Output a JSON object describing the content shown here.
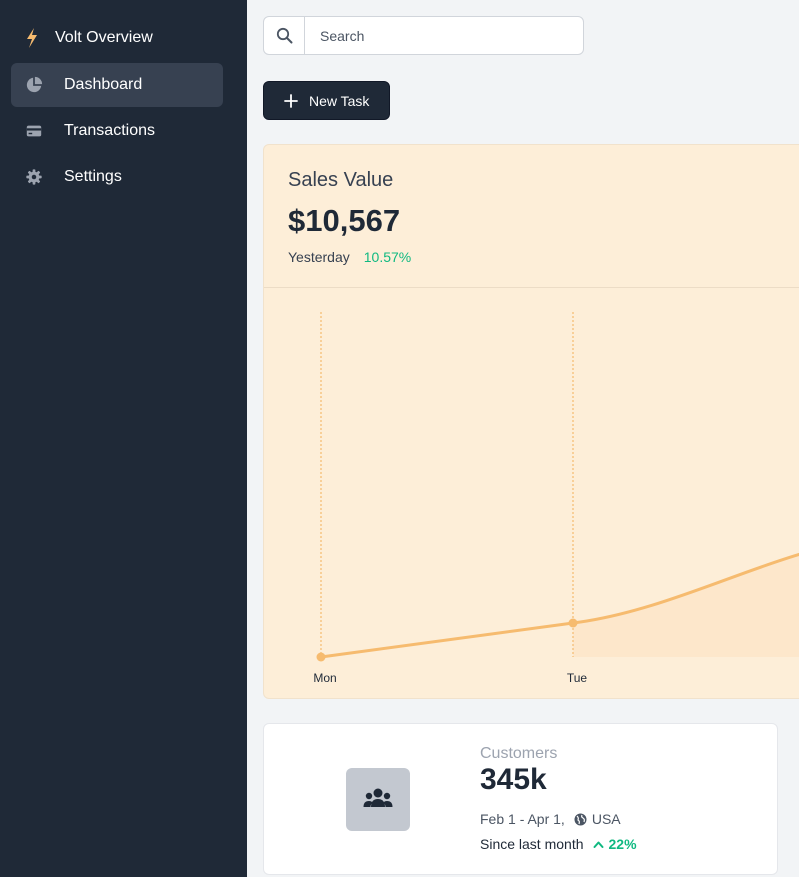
{
  "sidebar": {
    "brand": "Volt Overview",
    "items": [
      {
        "label": "Dashboard",
        "icon": "chart-pie-icon",
        "active": true
      },
      {
        "label": "Transactions",
        "icon": "credit-card-icon",
        "active": false
      },
      {
        "label": "Settings",
        "icon": "gear-icon",
        "active": false
      }
    ]
  },
  "search": {
    "placeholder": "Search",
    "value": ""
  },
  "toolbar": {
    "new_task_label": "New Task"
  },
  "sales": {
    "title": "Sales Value",
    "value": "$10,567",
    "period": "Yesterday",
    "change": "10.57%"
  },
  "chart_data": {
    "type": "area",
    "categories": [
      "Mon",
      "Tue"
    ],
    "x": [
      "Mon",
      "Tue"
    ],
    "values": [
      0,
      1
    ],
    "color": "#f6bb6f",
    "fill": "#fde7cb",
    "grid": "dashed vertical lines at data points"
  },
  "customers": {
    "label": "Customers",
    "value": "345k",
    "range": "Feb 1 - Apr 1,",
    "country": "USA",
    "since_label": "Since last month",
    "change": "22%"
  },
  "colors": {
    "sidebar_bg": "#1f2937",
    "accent_orange": "#f6bb6f",
    "positive_green": "#10b981",
    "card_bg": "#fdeed8"
  }
}
